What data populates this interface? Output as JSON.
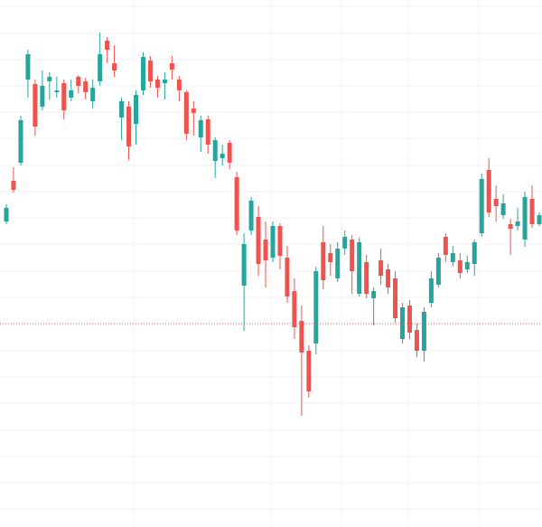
{
  "chart_data": {
    "type": "candlestick",
    "open": [
      338,
      383,
      403,
      495,
      490,
      465,
      493,
      481,
      491,
      475,
      498,
      493,
      471,
      493,
      538,
      513,
      453,
      465,
      446,
      483,
      516,
      495,
      491,
      513,
      495,
      481,
      463,
      431,
      451,
      405,
      408,
      425,
      387,
      267,
      328,
      343,
      318,
      298,
      333,
      298,
      261,
      228,
      195,
      203,
      315,
      303,
      275,
      308,
      318,
      258,
      293,
      253,
      295,
      285,
      275,
      208,
      245,
      218,
      195,
      248,
      268,
      321,
      293,
      295,
      285,
      291,
      325,
      395,
      363,
      345,
      335,
      333,
      318,
      363,
      335
    ],
    "high": [
      357,
      398,
      455,
      528,
      495,
      505,
      503,
      498,
      495,
      495,
      500,
      497,
      495,
      547,
      542,
      533,
      475,
      471,
      483,
      525,
      521,
      499,
      503,
      521,
      499,
      483,
      471,
      455,
      455,
      431,
      423,
      428,
      393,
      325,
      365,
      355,
      338,
      338,
      336,
      311,
      275,
      245,
      201,
      288,
      333,
      313,
      315,
      328,
      323,
      320,
      301,
      265,
      308,
      291,
      283,
      248,
      251,
      225,
      243,
      283,
      303,
      325,
      311,
      303,
      300,
      318,
      391,
      408,
      378,
      368,
      341,
      353,
      371,
      378,
      348
    ],
    "low": [
      335,
      370,
      400,
      475,
      433,
      461,
      473,
      475,
      451,
      471,
      480,
      473,
      463,
      488,
      513,
      498,
      428,
      406,
      423,
      478,
      486,
      475,
      473,
      495,
      471,
      428,
      433,
      415,
      413,
      386,
      400,
      396,
      323,
      217,
      323,
      278,
      265,
      293,
      285,
      248,
      208,
      123,
      143,
      191,
      263,
      278,
      271,
      301,
      258,
      255,
      253,
      223,
      268,
      258,
      226,
      203,
      208,
      188,
      183,
      243,
      265,
      293,
      288,
      275,
      281,
      278,
      321,
      343,
      338,
      341,
      301,
      328,
      310,
      331,
      333
    ],
    "close": [
      353,
      373,
      450,
      523,
      443,
      488,
      498,
      483,
      461,
      483,
      488,
      481,
      486,
      523,
      528,
      505,
      471,
      421,
      478,
      520,
      493,
      486,
      495,
      506,
      483,
      435,
      458,
      450,
      423,
      428,
      413,
      403,
      328,
      313,
      361,
      291,
      295,
      333,
      300,
      255,
      221,
      193,
      150,
      283,
      273,
      293,
      308,
      321,
      283,
      315,
      258,
      261,
      278,
      265,
      231,
      243,
      215,
      195,
      238,
      275,
      298,
      301,
      303,
      281,
      293,
      315,
      385,
      348,
      355,
      358,
      330,
      338,
      365,
      335,
      345
    ],
    "up_color": "#26a69a",
    "down_color": "#ef5350",
    "ylim": [
      0,
      583
    ],
    "price_line": 225,
    "price_line_color": "#ef5350"
  }
}
